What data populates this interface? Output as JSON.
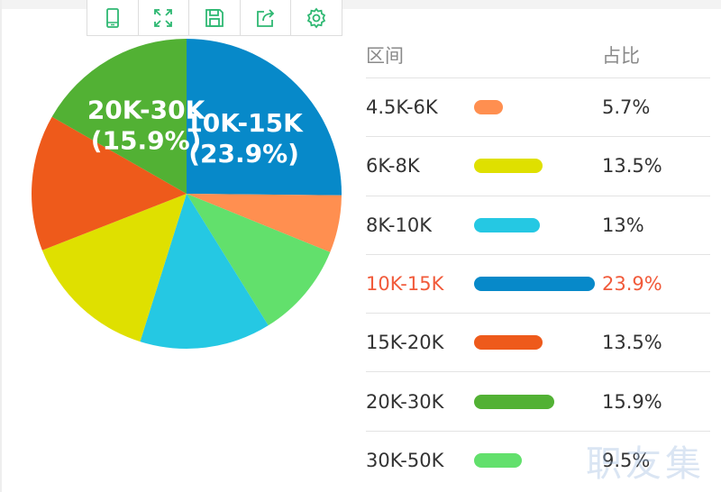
{
  "toolbar": {
    "icons": [
      "phone-view-icon",
      "fullscreen-icon",
      "save-icon",
      "share-icon",
      "settings-icon"
    ],
    "color": "#2eb872"
  },
  "table": {
    "header_range": "区间",
    "header_pct": "占比"
  },
  "watermark": "职友集",
  "colors": [
    "#ff8f50",
    "#dfe000",
    "#25c8e3",
    "#0789c9",
    "#ee5a1b",
    "#52b134",
    "#62e06c"
  ],
  "highlight_index": 3,
  "chart_data": {
    "type": "pie",
    "categories": [
      "4.5K-6K",
      "6K-8K",
      "8K-10K",
      "10K-15K",
      "15K-20K",
      "20K-30K",
      "30K-50K"
    ],
    "values": [
      5.7,
      13.5,
      13,
      23.9,
      13.5,
      15.9,
      9.5
    ],
    "value_labels": [
      "5.7%",
      "13.5%",
      "13%",
      "23.9%",
      "13.5%",
      "15.9%",
      "9.5%"
    ],
    "slice_labels": [
      {
        "index": 3,
        "name": "10K-15K",
        "pct": "(23.9%)"
      },
      {
        "index": 5,
        "name": "20K-30K",
        "pct": "(15.9%)"
      }
    ],
    "clockwise_order_from_top": [
      "10K-15K",
      "4.5K-6K",
      "30K-50K",
      "8K-10K",
      "6K-8K",
      "15K-20K",
      "20K-30K"
    ]
  }
}
